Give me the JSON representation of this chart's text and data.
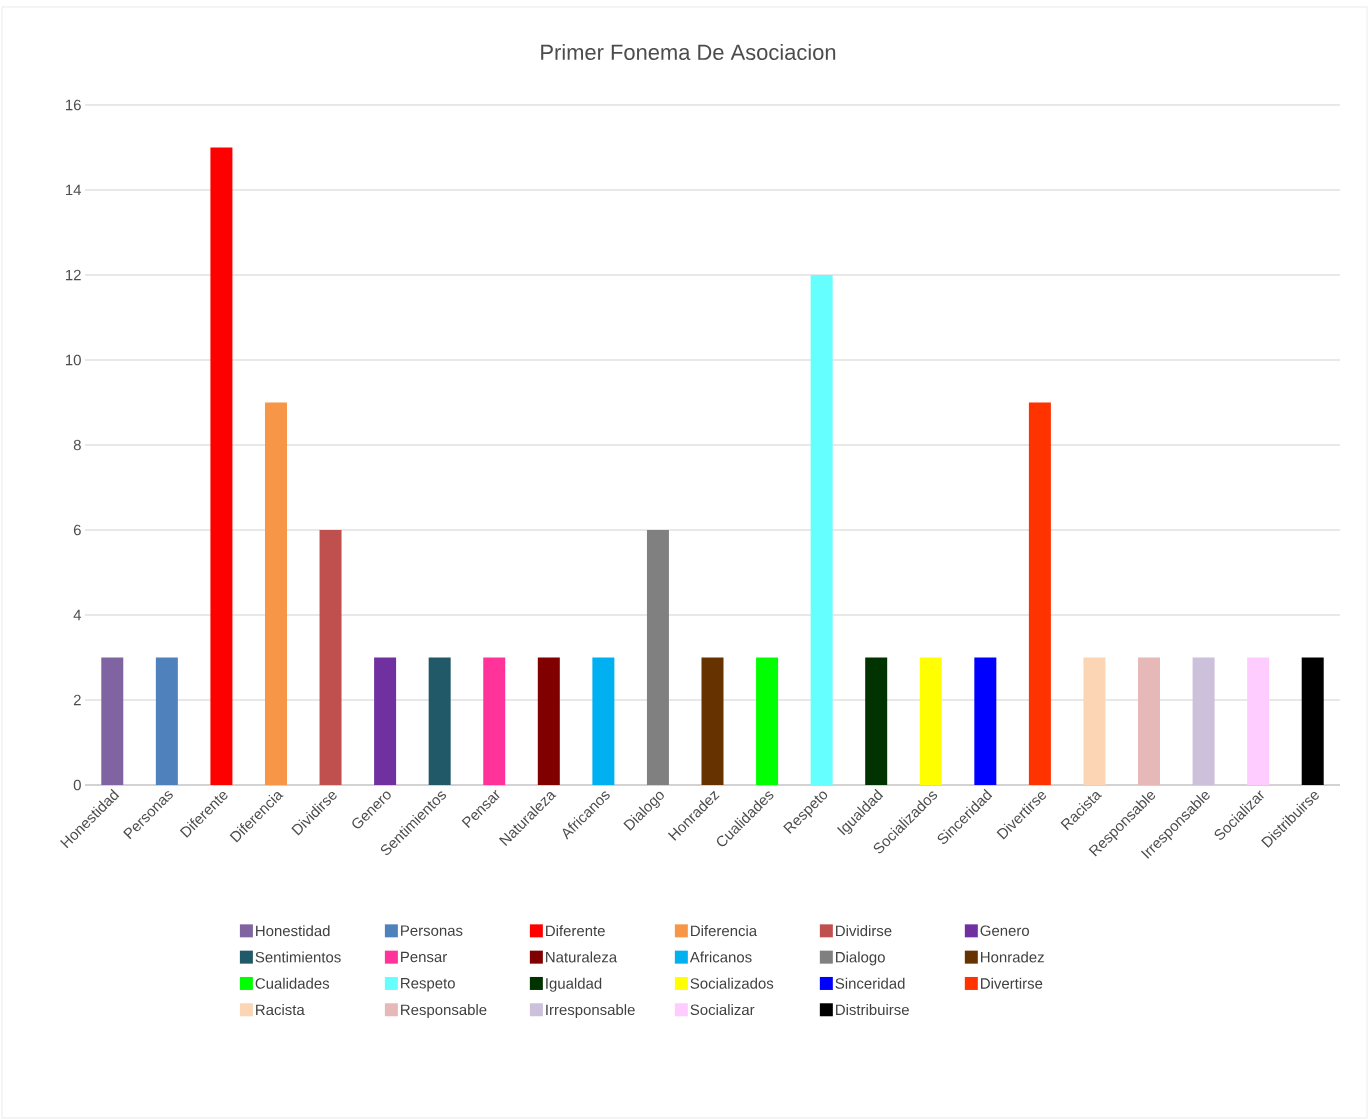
{
  "chart_data": {
    "type": "bar",
    "title": "Primer Fonema De Asociacion",
    "categories": [
      "Honestidad",
      "Personas",
      "Diferente",
      "Diferencia",
      "Dividirse",
      "Genero",
      "Sentimientos",
      "Pensar",
      "Naturaleza",
      "Africanos",
      "Dialogo",
      "Honradez",
      "Cualidades",
      "Respeto",
      "Igualdad",
      "Socializados",
      "Sinceridad",
      "Divertirse",
      "Racista",
      "Responsable",
      "Irresponsable",
      "Socializar",
      "Distribuirse"
    ],
    "series": [
      {
        "name": "Honestidad",
        "color": "#8064a2",
        "values": [
          3,
          null,
          null,
          null,
          null,
          null,
          null,
          null,
          null,
          null,
          null,
          null,
          null,
          null,
          null,
          null,
          null,
          null,
          null,
          null,
          null,
          null,
          null
        ]
      },
      {
        "name": "Personas",
        "color": "#4f81bd",
        "values": [
          null,
          3,
          null,
          null,
          null,
          null,
          null,
          null,
          null,
          null,
          null,
          null,
          null,
          null,
          null,
          null,
          null,
          null,
          null,
          null,
          null,
          null,
          null
        ]
      },
      {
        "name": "Diferente",
        "color": "#ff0000",
        "values": [
          null,
          null,
          15,
          null,
          null,
          null,
          null,
          null,
          null,
          null,
          null,
          null,
          null,
          null,
          null,
          null,
          null,
          null,
          null,
          null,
          null,
          null,
          null
        ]
      },
      {
        "name": "Diferencia",
        "color": "#f79646",
        "values": [
          null,
          null,
          null,
          9,
          null,
          null,
          null,
          null,
          null,
          null,
          null,
          null,
          null,
          null,
          null,
          null,
          null,
          null,
          null,
          null,
          null,
          null,
          null
        ]
      },
      {
        "name": "Dividirse",
        "color": "#c0504d",
        "values": [
          null,
          null,
          null,
          null,
          6,
          null,
          null,
          null,
          null,
          null,
          null,
          null,
          null,
          null,
          null,
          null,
          null,
          null,
          null,
          null,
          null,
          null,
          null
        ]
      },
      {
        "name": "Genero",
        "color": "#7030a0",
        "values": [
          null,
          null,
          null,
          null,
          null,
          3,
          null,
          null,
          null,
          null,
          null,
          null,
          null,
          null,
          null,
          null,
          null,
          null,
          null,
          null,
          null,
          null,
          null
        ]
      },
      {
        "name": "Sentimientos",
        "color": "#215968",
        "values": [
          null,
          null,
          null,
          null,
          null,
          null,
          3,
          null,
          null,
          null,
          null,
          null,
          null,
          null,
          null,
          null,
          null,
          null,
          null,
          null,
          null,
          null,
          null
        ]
      },
      {
        "name": "Pensar",
        "color": "#ff3399",
        "values": [
          null,
          null,
          null,
          null,
          null,
          null,
          null,
          3,
          null,
          null,
          null,
          null,
          null,
          null,
          null,
          null,
          null,
          null,
          null,
          null,
          null,
          null,
          null
        ]
      },
      {
        "name": "Naturaleza",
        "color": "#800000",
        "values": [
          null,
          null,
          null,
          null,
          null,
          null,
          null,
          null,
          3,
          null,
          null,
          null,
          null,
          null,
          null,
          null,
          null,
          null,
          null,
          null,
          null,
          null,
          null
        ]
      },
      {
        "name": "Africanos",
        "color": "#00b0f0",
        "values": [
          null,
          null,
          null,
          null,
          null,
          null,
          null,
          null,
          null,
          3,
          null,
          null,
          null,
          null,
          null,
          null,
          null,
          null,
          null,
          null,
          null,
          null,
          null
        ]
      },
      {
        "name": "Dialogo",
        "color": "#808080",
        "values": [
          null,
          null,
          null,
          null,
          null,
          null,
          null,
          null,
          null,
          null,
          6,
          null,
          null,
          null,
          null,
          null,
          null,
          null,
          null,
          null,
          null,
          null,
          null
        ]
      },
      {
        "name": "Honradez",
        "color": "#663300",
        "values": [
          null,
          null,
          null,
          null,
          null,
          null,
          null,
          null,
          null,
          null,
          null,
          3,
          null,
          null,
          null,
          null,
          null,
          null,
          null,
          null,
          null,
          null,
          null
        ]
      },
      {
        "name": "Cualidades",
        "color": "#00ff00",
        "values": [
          null,
          null,
          null,
          null,
          null,
          null,
          null,
          null,
          null,
          null,
          null,
          null,
          3,
          null,
          null,
          null,
          null,
          null,
          null,
          null,
          null,
          null,
          null
        ]
      },
      {
        "name": "Respeto",
        "color": "#66ffff",
        "values": [
          null,
          null,
          null,
          null,
          null,
          null,
          null,
          null,
          null,
          null,
          null,
          null,
          null,
          12,
          null,
          null,
          null,
          null,
          null,
          null,
          null,
          null,
          null
        ]
      },
      {
        "name": "Igualdad",
        "color": "#003300",
        "values": [
          null,
          null,
          null,
          null,
          null,
          null,
          null,
          null,
          null,
          null,
          null,
          null,
          null,
          null,
          3,
          null,
          null,
          null,
          null,
          null,
          null,
          null,
          null
        ]
      },
      {
        "name": "Socializados",
        "color": "#ffff00",
        "values": [
          null,
          null,
          null,
          null,
          null,
          null,
          null,
          null,
          null,
          null,
          null,
          null,
          null,
          null,
          null,
          3,
          null,
          null,
          null,
          null,
          null,
          null,
          null
        ]
      },
      {
        "name": "Sinceridad",
        "color": "#0000ff",
        "values": [
          null,
          null,
          null,
          null,
          null,
          null,
          null,
          null,
          null,
          null,
          null,
          null,
          null,
          null,
          null,
          null,
          3,
          null,
          null,
          null,
          null,
          null,
          null
        ]
      },
      {
        "name": "Divertirse",
        "color": "#ff3300",
        "values": [
          null,
          null,
          null,
          null,
          null,
          null,
          null,
          null,
          null,
          null,
          null,
          null,
          null,
          null,
          null,
          null,
          null,
          9,
          null,
          null,
          null,
          null,
          null
        ]
      },
      {
        "name": "Racista",
        "color": "#fcd5b4",
        "values": [
          null,
          null,
          null,
          null,
          null,
          null,
          null,
          null,
          null,
          null,
          null,
          null,
          null,
          null,
          null,
          null,
          null,
          null,
          3,
          null,
          null,
          null,
          null
        ]
      },
      {
        "name": "Responsable",
        "color": "#e6b8b7",
        "values": [
          null,
          null,
          null,
          null,
          null,
          null,
          null,
          null,
          null,
          null,
          null,
          null,
          null,
          null,
          null,
          null,
          null,
          null,
          null,
          3,
          null,
          null,
          null
        ]
      },
      {
        "name": "Irresponsable",
        "color": "#ccc0da",
        "values": [
          null,
          null,
          null,
          null,
          null,
          null,
          null,
          null,
          null,
          null,
          null,
          null,
          null,
          null,
          null,
          null,
          null,
          null,
          null,
          null,
          3,
          null,
          null
        ]
      },
      {
        "name": "Socializar",
        "color": "#ffccff",
        "values": [
          null,
          null,
          null,
          null,
          null,
          null,
          null,
          null,
          null,
          null,
          null,
          null,
          null,
          null,
          null,
          null,
          null,
          null,
          null,
          null,
          null,
          3,
          null
        ]
      },
      {
        "name": "Distribuirse",
        "color": "#000000",
        "values": [
          null,
          null,
          null,
          null,
          null,
          null,
          null,
          null,
          null,
          null,
          null,
          null,
          null,
          null,
          null,
          null,
          null,
          null,
          null,
          null,
          null,
          null,
          3
        ]
      }
    ],
    "ylim": [
      0,
      16
    ],
    "yticks": [
      0,
      2,
      4,
      6,
      8,
      10,
      12,
      14,
      16
    ],
    "grid": "y",
    "legend": "bottom"
  }
}
